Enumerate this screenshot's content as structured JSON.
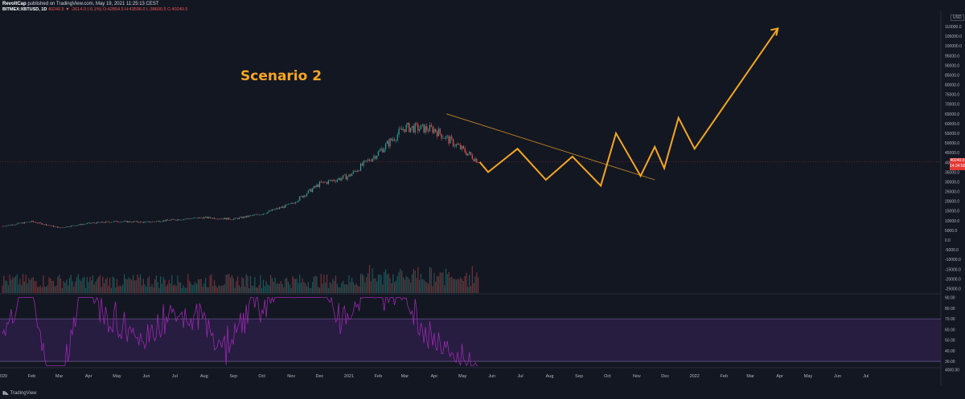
{
  "header": {
    "publisher": "RevoltCap",
    "published_text": "published on TradingView.com, May 19, 2021 11:25:13 CEST",
    "symbol": "BITMEX:XBTUSD, 1D",
    "ohlc_text": "40240.5 ▼ -2614.0 (-6.1%) O:42854.5 H:43596.0 L:38600.5 C:40240.5"
  },
  "annotation": {
    "label": "Scenario 2",
    "color": "#f5a623"
  },
  "price_tag": {
    "price": "40240.5",
    "countdown": "14:34:50"
  },
  "currency_button": "USD",
  "footer": {
    "logo_text": "TradingView"
  },
  "chart_data": {
    "type": "line",
    "panes": [
      "price-volume",
      "rsi"
    ],
    "price_axis": {
      "ticks": [
        "110000.0",
        "105000.0",
        "100000.0",
        "95000.0",
        "90000.0",
        "85000.0",
        "80000.0",
        "75000.0",
        "70000.0",
        "65000.0",
        "60000.0",
        "55000.0",
        "50000.0",
        "45000.0",
        "40000.0",
        "35000.0",
        "30000.0",
        "25000.0",
        "20000.0",
        "15000.0",
        "10000.0",
        "5000.0",
        "0.0",
        "-5000.0",
        "-10000.0",
        "-15000.0",
        "-20000.0",
        "-25000.0"
      ],
      "ylim": [
        -27000,
        115000
      ]
    },
    "rsi_axis": {
      "ticks": [
        "90.00",
        "80.00",
        "70.00",
        "60.00",
        "50.00",
        "40.00",
        "30.00",
        "4000.00"
      ],
      "band": [
        30,
        70
      ]
    },
    "x_axis_labels": [
      "2020",
      "Feb",
      "Mar",
      "Apr",
      "May",
      "Jun",
      "Jul",
      "Aug",
      "Sep",
      "Oct",
      "Nov",
      "Dec",
      "2021",
      "Feb",
      "Mar",
      "Apr",
      "May",
      "Jun",
      "Jul",
      "Aug",
      "Sep",
      "Oct",
      "Nov",
      "Dec",
      "2022",
      "Feb",
      "Mar",
      "Apr",
      "May",
      "Jun",
      "Jul"
    ],
    "price_series_monthly": {
      "x": [
        "2020-01",
        "2020-02",
        "2020-03",
        "2020-04",
        "2020-05",
        "2020-06",
        "2020-07",
        "2020-08",
        "2020-09",
        "2020-10",
        "2020-11",
        "2020-12",
        "2021-01",
        "2021-02",
        "2021-03",
        "2021-04",
        "2021-05"
      ],
      "y": [
        7200,
        9500,
        6400,
        8600,
        9600,
        9200,
        10500,
        11600,
        10800,
        13500,
        18500,
        28900,
        33000,
        45000,
        58000,
        57000,
        40240
      ]
    },
    "scenario_path": {
      "name": "Scenario 2",
      "x": [
        "2021-05-19",
        "2021-05-28",
        "2021-06-28",
        "2021-07-28",
        "2021-08-25",
        "2021-09-24",
        "2021-10-10",
        "2021-11-05",
        "2021-11-20",
        "2021-11-30",
        "2021-12-15",
        "2022-01-01",
        "2022-03-30"
      ],
      "y": [
        40240,
        35000,
        47000,
        31000,
        43000,
        28000,
        55000,
        33000,
        48000,
        37000,
        63000,
        47000,
        109000
      ]
    },
    "trendline": {
      "x": [
        "2021-04-14",
        "2021-11-20"
      ],
      "y": [
        65000,
        31000
      ]
    },
    "colors": {
      "up": "#26a69a",
      "down": "#ef5350",
      "scenario": "#f5a623",
      "rsi": "#9c27b0",
      "rsi_band": "#2a1f45"
    }
  }
}
